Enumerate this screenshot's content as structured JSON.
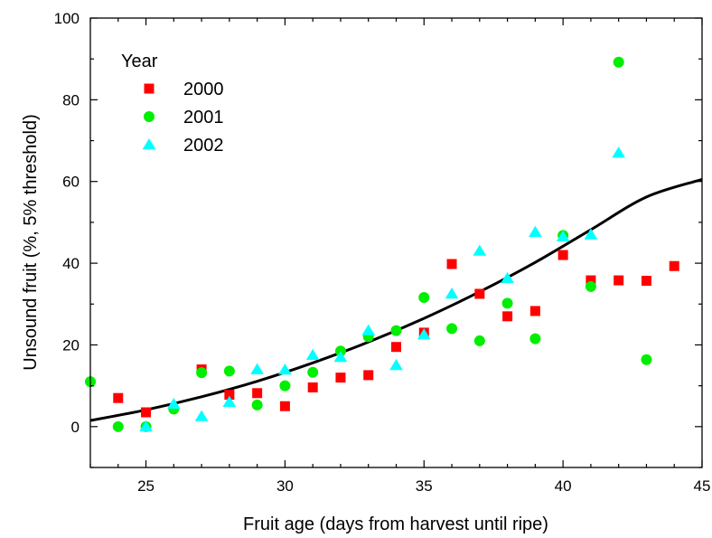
{
  "chart_data": {
    "type": "scatter",
    "xlabel": "Fruit age (days from harvest until ripe)",
    "ylabel": "Unsound fruit (%, 5% threshold)",
    "xlim": [
      23,
      45
    ],
    "ylim": [
      -10,
      100
    ],
    "xticks": [
      25,
      30,
      35,
      40,
      45
    ],
    "yticks": [
      0,
      20,
      40,
      60,
      80,
      100
    ],
    "x_minor_step": 1,
    "y_minor_step": 10,
    "grid": false,
    "legend": {
      "title": "Year",
      "position": "top-left"
    },
    "series": [
      {
        "name": "2000",
        "marker": "square",
        "color": "#ff0000",
        "points": [
          [
            24,
            7
          ],
          [
            25,
            3.5
          ],
          [
            27,
            14
          ],
          [
            28,
            7.8
          ],
          [
            29,
            8.2
          ],
          [
            30,
            5
          ],
          [
            31,
            9.6
          ],
          [
            32,
            12
          ],
          [
            33,
            12.6
          ],
          [
            34,
            19.5
          ],
          [
            35,
            23
          ],
          [
            36,
            39.8
          ],
          [
            37,
            32.5
          ],
          [
            38,
            27
          ],
          [
            39,
            28.3
          ],
          [
            40,
            42
          ],
          [
            41,
            35.8
          ],
          [
            42,
            35.8
          ],
          [
            43,
            35.7
          ],
          [
            44,
            39.3
          ]
        ]
      },
      {
        "name": "2001",
        "marker": "circle",
        "color": "#00ee00",
        "points": [
          [
            23,
            11
          ],
          [
            24,
            0
          ],
          [
            25,
            0
          ],
          [
            26,
            4.3
          ],
          [
            27,
            13.2
          ],
          [
            28,
            13.6
          ],
          [
            29,
            5.3
          ],
          [
            30,
            10
          ],
          [
            31,
            13.3
          ],
          [
            32,
            18.5
          ],
          [
            33,
            22
          ],
          [
            34,
            23.5
          ],
          [
            35,
            31.6
          ],
          [
            36,
            24
          ],
          [
            37,
            21
          ],
          [
            38,
            30.2
          ],
          [
            39,
            21.5
          ],
          [
            40,
            46.8
          ],
          [
            41,
            34.3
          ],
          [
            42,
            89.2
          ],
          [
            43,
            16.4
          ]
        ]
      },
      {
        "name": "2002",
        "marker": "triangle",
        "color": "#00ffff",
        "points": [
          [
            25,
            0
          ],
          [
            26,
            5.5
          ],
          [
            27,
            2.5
          ],
          [
            28,
            6
          ],
          [
            29,
            14
          ],
          [
            30,
            13.9
          ],
          [
            31,
            17.5
          ],
          [
            32,
            17
          ],
          [
            33,
            23.5
          ],
          [
            34,
            15
          ],
          [
            35,
            22.5
          ],
          [
            36,
            32.5
          ],
          [
            37,
            43
          ],
          [
            38,
            36.3
          ],
          [
            39,
            47.6
          ],
          [
            40,
            46.5
          ],
          [
            41,
            47
          ],
          [
            42,
            67
          ]
        ]
      }
    ],
    "fit_curve": {
      "type": "polynomial",
      "color": "#000000",
      "points": [
        [
          23,
          1.5
        ],
        [
          25,
          4.1
        ],
        [
          27,
          7.3
        ],
        [
          29,
          11.1
        ],
        [
          31,
          15.6
        ],
        [
          33,
          20.7
        ],
        [
          35,
          26.5
        ],
        [
          37,
          33
        ],
        [
          39,
          40.2
        ],
        [
          41,
          48.2
        ],
        [
          43,
          56.2
        ],
        [
          45,
          60.5
        ]
      ]
    }
  }
}
